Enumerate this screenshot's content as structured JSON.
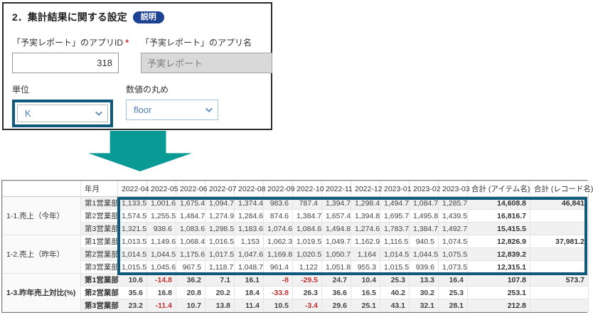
{
  "colors": {
    "highlight": "#0d5a7d",
    "arrow": "#0a9a95",
    "badge": "#1d4293",
    "neg": "#c03030",
    "linkblue": "#4d7fb2"
  },
  "form": {
    "title": "2．集計結果に関する設定",
    "badge_label": "説明",
    "app_id_label": "「予実レポート」のアプリID",
    "required_mark": "*",
    "app_id_value": "318",
    "app_name_label": "「予実レポート」のアプリ名",
    "app_name_value": "予実レポート",
    "unit_label": "単位",
    "unit_value": "K",
    "rounding_label": "数値の丸め",
    "rounding_value": "floor"
  },
  "table": {
    "headers": {
      "group": "",
      "period": "年月",
      "months": [
        "2022-04",
        "2022-05",
        "2022-06",
        "2022-07",
        "2022-08",
        "2022-09",
        "2022-10",
        "2022-11",
        "2022-12",
        "2023-01",
        "2023-02",
        "2023-03"
      ],
      "total_item": "合計 (アイテム名)",
      "total_record": "合計 (レコード名)"
    },
    "groups": [
      {
        "label": "1-1.売上（今年）",
        "bold": false,
        "rows": [
          {
            "dept": "第1営業部",
            "values": [
              "1,133.5",
              "1,001.6",
              "1,675.4",
              "1,094.7",
              "1,374.4",
              "983.6",
              "787.4",
              "1,394.7",
              "1,298.4",
              "1,494.7",
              "1,084.7",
              "1,285.7"
            ],
            "total_item": "14,608.8",
            "total_record": "46,841"
          },
          {
            "dept": "第2営業部",
            "values": [
              "1,574.5",
              "1,255.5",
              "1,484.7",
              "1,274.9",
              "1,284.6",
              "874.6",
              "1,384.7",
              "1,657.4",
              "1,394.8",
              "1,695.7",
              "1,495.8",
              "1,439.5"
            ],
            "total_item": "16,816.7",
            "total_record": ""
          },
          {
            "dept": "第3営業部",
            "values": [
              "1,321.5",
              "938.6",
              "1,083.6",
              "1,298.5",
              "1,183.6",
              "1,074.6",
              "1,084.6",
              "1,494.8",
              "1,274.6",
              "1,783.7",
              "1,384.7",
              "1,492.7"
            ],
            "total_item": "15,415.5",
            "total_record": ""
          }
        ]
      },
      {
        "label": "1-2.売上（昨年）",
        "bold": false,
        "rows": [
          {
            "dept": "第1営業部",
            "values": [
              "1,013.5",
              "1,149.6",
              "1,068.4",
              "1,016.5",
              "1,153",
              "1,062.3",
              "1,019.5",
              "1,049.7",
              "1,162.9",
              "1,116.5",
              "940.5",
              "1,074.5"
            ],
            "total_item": "12,826.9",
            "total_record": "37,981.2"
          },
          {
            "dept": "第2営業部",
            "values": [
              "1,014.5",
              "1,044.5",
              "1,175.6",
              "1,017.5",
              "1,047.6",
              "1,169.8",
              "1,020.5",
              "1,050.7",
              "1,164",
              "1,014.5",
              "1,044.5",
              "1,075.5"
            ],
            "total_item": "12,839.2",
            "total_record": ""
          },
          {
            "dept": "第3営業部",
            "values": [
              "1,015.5",
              "1,045.6",
              "967.5",
              "1,118.7",
              "1,048.7",
              "961.4",
              "1,122",
              "1,051.8",
              "955.3",
              "1,015.5",
              "939.6",
              "1,073.5"
            ],
            "total_item": "12,315.1",
            "total_record": ""
          }
        ]
      },
      {
        "label": "1-3.昨年売上対比(%)",
        "bold": true,
        "rows": [
          {
            "dept": "第1営業部",
            "values": [
              "10.6",
              "-14.8",
              "36.2",
              "7.1",
              "16.1",
              "-8",
              "-29.5",
              "24.7",
              "10.4",
              "25.3",
              "13.3",
              "16.4"
            ],
            "total_item": "107.8",
            "total_record": "573.7"
          },
          {
            "dept": "第2営業部",
            "values": [
              "35.6",
              "16.8",
              "20.8",
              "20.2",
              "18.4",
              "-33.8",
              "26.3",
              "36.6",
              "16.5",
              "40.2",
              "30.2",
              "25.3"
            ],
            "total_item": "253.1",
            "total_record": ""
          },
          {
            "dept": "第3営業部",
            "values": [
              "23.2",
              "-11.4",
              "10.7",
              "13.8",
              "11.4",
              "10.5",
              "-3.4",
              "29.6",
              "25.1",
              "43.1",
              "32.1",
              "28.1"
            ],
            "total_item": "212.8",
            "total_record": ""
          }
        ]
      }
    ]
  }
}
